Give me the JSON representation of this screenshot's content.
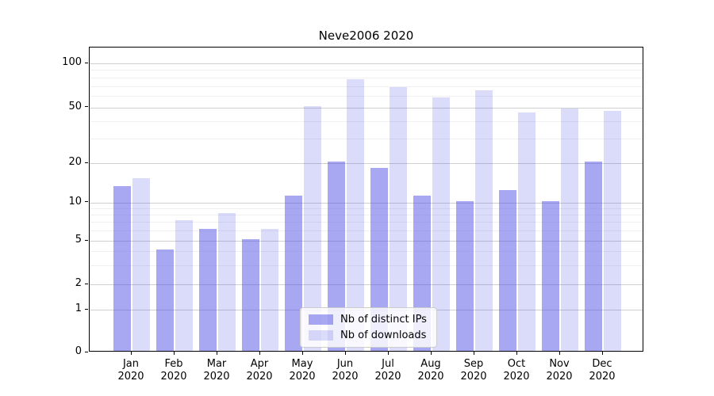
{
  "chart_data": {
    "type": "bar",
    "title": "Neve2006 2020",
    "categories": [
      {
        "month": "Jan",
        "year": "2020"
      },
      {
        "month": "Feb",
        "year": "2020"
      },
      {
        "month": "Mar",
        "year": "2020"
      },
      {
        "month": "Apr",
        "year": "2020"
      },
      {
        "month": "May",
        "year": "2020"
      },
      {
        "month": "Jun",
        "year": "2020"
      },
      {
        "month": "Jul",
        "year": "2020"
      },
      {
        "month": "Aug",
        "year": "2020"
      },
      {
        "month": "Sep",
        "year": "2020"
      },
      {
        "month": "Oct",
        "year": "2020"
      },
      {
        "month": "Nov",
        "year": "2020"
      },
      {
        "month": "Dec",
        "year": "2020"
      }
    ],
    "series": [
      {
        "name": "Nb of distinct IPs",
        "color": "rgba(85,85,230,0.51)",
        "flat_color": "#a8a8f0",
        "values": [
          13,
          4,
          6,
          5,
          11,
          20,
          18,
          11,
          10,
          12,
          10,
          20
        ]
      },
      {
        "name": "Nb of downloads",
        "color": "rgba(85,85,230,0.21)",
        "flat_color": "#dcdcf8",
        "values": [
          15,
          7,
          8,
          6,
          50,
          76,
          67,
          57,
          64,
          45,
          48,
          46
        ]
      }
    ],
    "yscale": "log-like (symlog)",
    "y_major_ticks": [
      0,
      1,
      2,
      5,
      10,
      20,
      50,
      100
    ],
    "y_minor_ticks": [
      3,
      4,
      6,
      7,
      8,
      9,
      30,
      40,
      60,
      70,
      80,
      90
    ],
    "ylim": [
      0,
      130
    ],
    "grid": "on",
    "legend_position": "lower center",
    "colors": {
      "axis": "#000000",
      "grid_major": "#cfcfcf",
      "grid_minor": "#f0f0f4",
      "legend_border": "#cccccc",
      "legend_background": "rgba(255,255,255,0.8)"
    }
  }
}
